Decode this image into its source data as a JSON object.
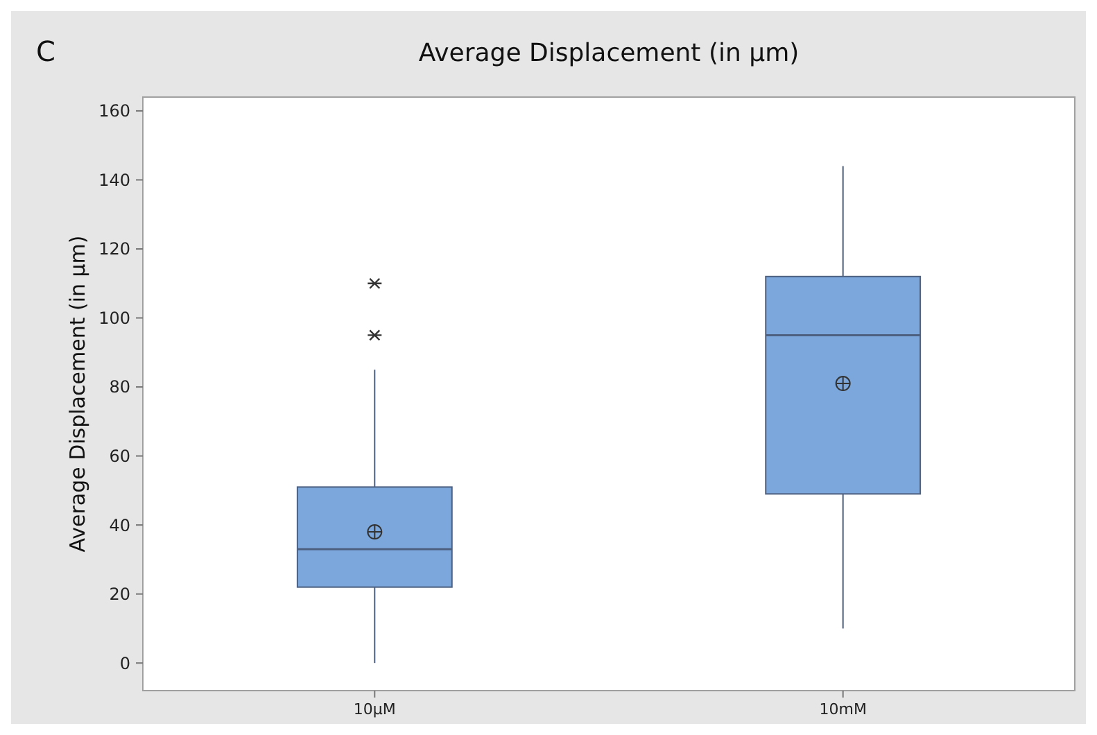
{
  "chart_data": {
    "type": "box",
    "title": "Average Displacement (in µm)",
    "ylabel": "Average Displacement (in µm)",
    "annotations": [
      "C"
    ],
    "categories": [
      "10µM",
      "10mM"
    ],
    "color": "#7ba7dc",
    "boxes": [
      {
        "low": 0,
        "q1": 22,
        "median": 33,
        "q3": 51,
        "high": 85,
        "mean": 38,
        "outliers": [
          95,
          110
        ]
      },
      {
        "low": 10,
        "q1": 49,
        "median": 95,
        "q3": 112,
        "high": 144,
        "mean": 81
      }
    ],
    "ylim": [
      -8,
      164
    ],
    "yticks": [
      0,
      20,
      40,
      60,
      80,
      100,
      120,
      140,
      160
    ]
  }
}
